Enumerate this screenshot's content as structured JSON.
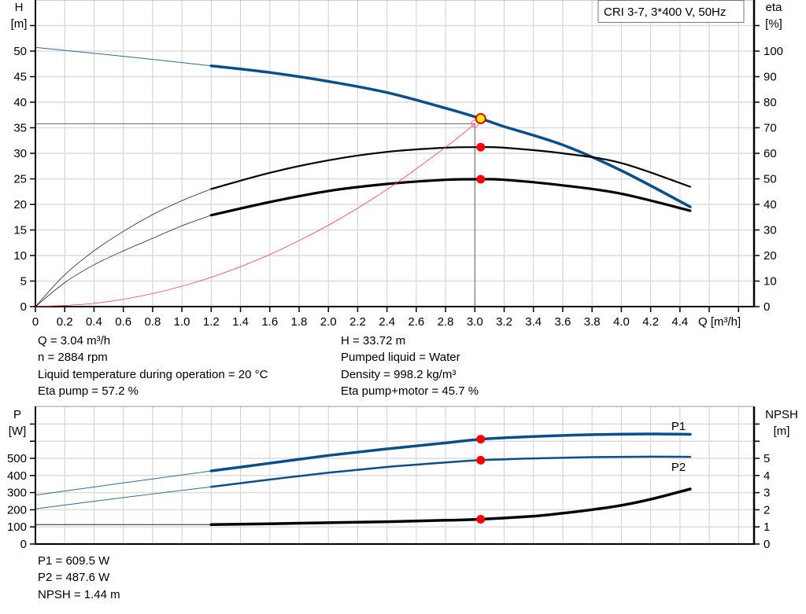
{
  "chart_data": [
    {
      "type": "line",
      "title": "CRI 3-7, 3*400 V, 50Hz",
      "xlabel": "Q [m³/h]",
      "ylabel_left": {
        "name": "H",
        "unit": "[m]"
      },
      "ylabel_right": {
        "name": "eta",
        "unit": "[%]"
      },
      "xlim": [
        0,
        4.8
      ],
      "xticks": [
        "0",
        "0.2",
        "0.4",
        "0.6",
        "0.8",
        "1.0",
        "1.2",
        "1.4",
        "1.6",
        "1.8",
        "2.0",
        "2.2",
        "2.4",
        "2.6",
        "2.8",
        "3.0",
        "3.2",
        "3.4",
        "3.6",
        "3.8",
        "4.0",
        "4.2",
        "4.4"
      ],
      "ylim_left": [
        0,
        55
      ],
      "yticks_left": [
        "0",
        "5",
        "10",
        "15",
        "20",
        "25",
        "30",
        "35",
        "40",
        "45",
        "50"
      ],
      "ylim_right": [
        0,
        110
      ],
      "yticks_right": [
        "0",
        "10",
        "20",
        "30",
        "40",
        "50",
        "60",
        "70",
        "80",
        "90",
        "100"
      ],
      "grid": true,
      "operating_range_q": [
        1.2,
        4.47
      ],
      "series": [
        {
          "key": "H",
          "axis": "left",
          "color": "#0b4f8a",
          "x": [
            0,
            0.6,
            1.2,
            1.6,
            2.0,
            2.4,
            2.8,
            3.04,
            3.2,
            3.6,
            4.0,
            4.47
          ],
          "y": [
            46.5,
            44.9,
            43.2,
            42.0,
            40.4,
            38.4,
            35.6,
            33.72,
            32.3,
            29.0,
            24.4,
            17.9
          ]
        },
        {
          "key": "eta_pump",
          "axis": "right",
          "color": "#000000",
          "x": [
            0,
            0.2,
            0.4,
            0.6,
            0.8,
            1.0,
            1.2,
            1.6,
            2.0,
            2.4,
            2.8,
            3.04,
            3.2,
            3.6,
            4.0,
            4.47
          ],
          "y": [
            0,
            11.4,
            20,
            27,
            33,
            38,
            42.2,
            48,
            52.5,
            55.5,
            57,
            57.2,
            57,
            55,
            51.5,
            43
          ]
        },
        {
          "key": "eta_pump_motor",
          "axis": "right",
          "color": "#000000",
          "x": [
            0,
            0.2,
            0.4,
            0.6,
            0.8,
            1.0,
            1.2,
            1.6,
            2.0,
            2.4,
            2.8,
            3.04,
            3.2,
            3.6,
            4.0,
            4.47
          ],
          "y": [
            0,
            8.6,
            15,
            20,
            24.5,
            29,
            32.8,
            37.5,
            41.5,
            44,
            45.5,
            45.7,
            45.5,
            43.5,
            40.5,
            34.4
          ]
        },
        {
          "key": "system_curve",
          "axis": "left",
          "color": "#ff3b3b",
          "x": [
            0,
            0.4,
            0.8,
            1.2,
            1.6,
            2.0,
            2.4,
            2.8,
            3.0
          ],
          "y": [
            0,
            0.58,
            2.34,
            5.26,
            9.35,
            14.6,
            21.0,
            28.6,
            32.8
          ]
        }
      ],
      "duty_point": {
        "q": 3.0,
        "h": 32.8
      },
      "operating_point": {
        "q": 3.04,
        "h": 33.72,
        "eta_pump": 57.2,
        "eta_pump_motor": 45.7
      }
    },
    {
      "type": "line",
      "ylabel_left": {
        "name": "P",
        "unit": "[W]"
      },
      "ylabel_right": {
        "name": "NPSH",
        "unit": "[m]"
      },
      "xlim": [
        0,
        4.8
      ],
      "ylim_left": [
        0,
        800
      ],
      "yticks_left": [
        "0",
        "100",
        "200",
        "300",
        "400",
        "500"
      ],
      "ylim_right": [
        0,
        8
      ],
      "yticks_right": [
        "0",
        "1",
        "2",
        "3",
        "4",
        "5"
      ],
      "grid": true,
      "series": [
        {
          "key": "P1",
          "name": "P1",
          "axis": "left",
          "color": "#0b4f8a",
          "x": [
            0,
            0.6,
            1.2,
            1.6,
            2.0,
            2.4,
            2.8,
            3.04,
            3.4,
            3.8,
            4.2,
            4.47
          ],
          "y": [
            285,
            355,
            425,
            470,
            515,
            553,
            588,
            609.5,
            625,
            636,
            640,
            638
          ]
        },
        {
          "key": "P2",
          "name": "P2",
          "axis": "left",
          "color": "#0b4f8a",
          "x": [
            0,
            0.6,
            1.2,
            1.6,
            2.0,
            2.4,
            2.8,
            3.04,
            3.4,
            3.8,
            4.2,
            4.47
          ],
          "y": [
            205,
            270,
            333,
            375,
            415,
            448,
            474,
            487.6,
            498,
            505,
            508,
            507
          ]
        },
        {
          "key": "NPSH",
          "axis": "right",
          "color": "#000000",
          "x": [
            0,
            1.2,
            1.6,
            2.0,
            2.4,
            2.8,
            3.04,
            3.4,
            3.6,
            3.8,
            4.0,
            4.2,
            4.47
          ],
          "y": [
            1.13,
            1.13,
            1.18,
            1.24,
            1.3,
            1.38,
            1.44,
            1.62,
            1.79,
            2.0,
            2.25,
            2.6,
            3.2
          ]
        }
      ],
      "operating_point": {
        "q": 3.04,
        "P1": 609.5,
        "P2": 487.6,
        "NPSH": 1.44
      }
    }
  ],
  "info_top": {
    "left": [
      "Q = 3.04 m³/h",
      "n = 2884 rpm",
      "Liquid temperature during operation = 20 °C",
      "Eta pump = 57.2 %"
    ],
    "right": [
      "H = 33.72 m",
      "Pumped liquid = Water",
      "Density = 998.2 kg/m³",
      "Eta pump+motor = 45.7 %"
    ]
  },
  "info_bottom": [
    "P1 = 609.5 W",
    "P2 = 487.6 W",
    "NPSH = 1.44 m"
  ]
}
